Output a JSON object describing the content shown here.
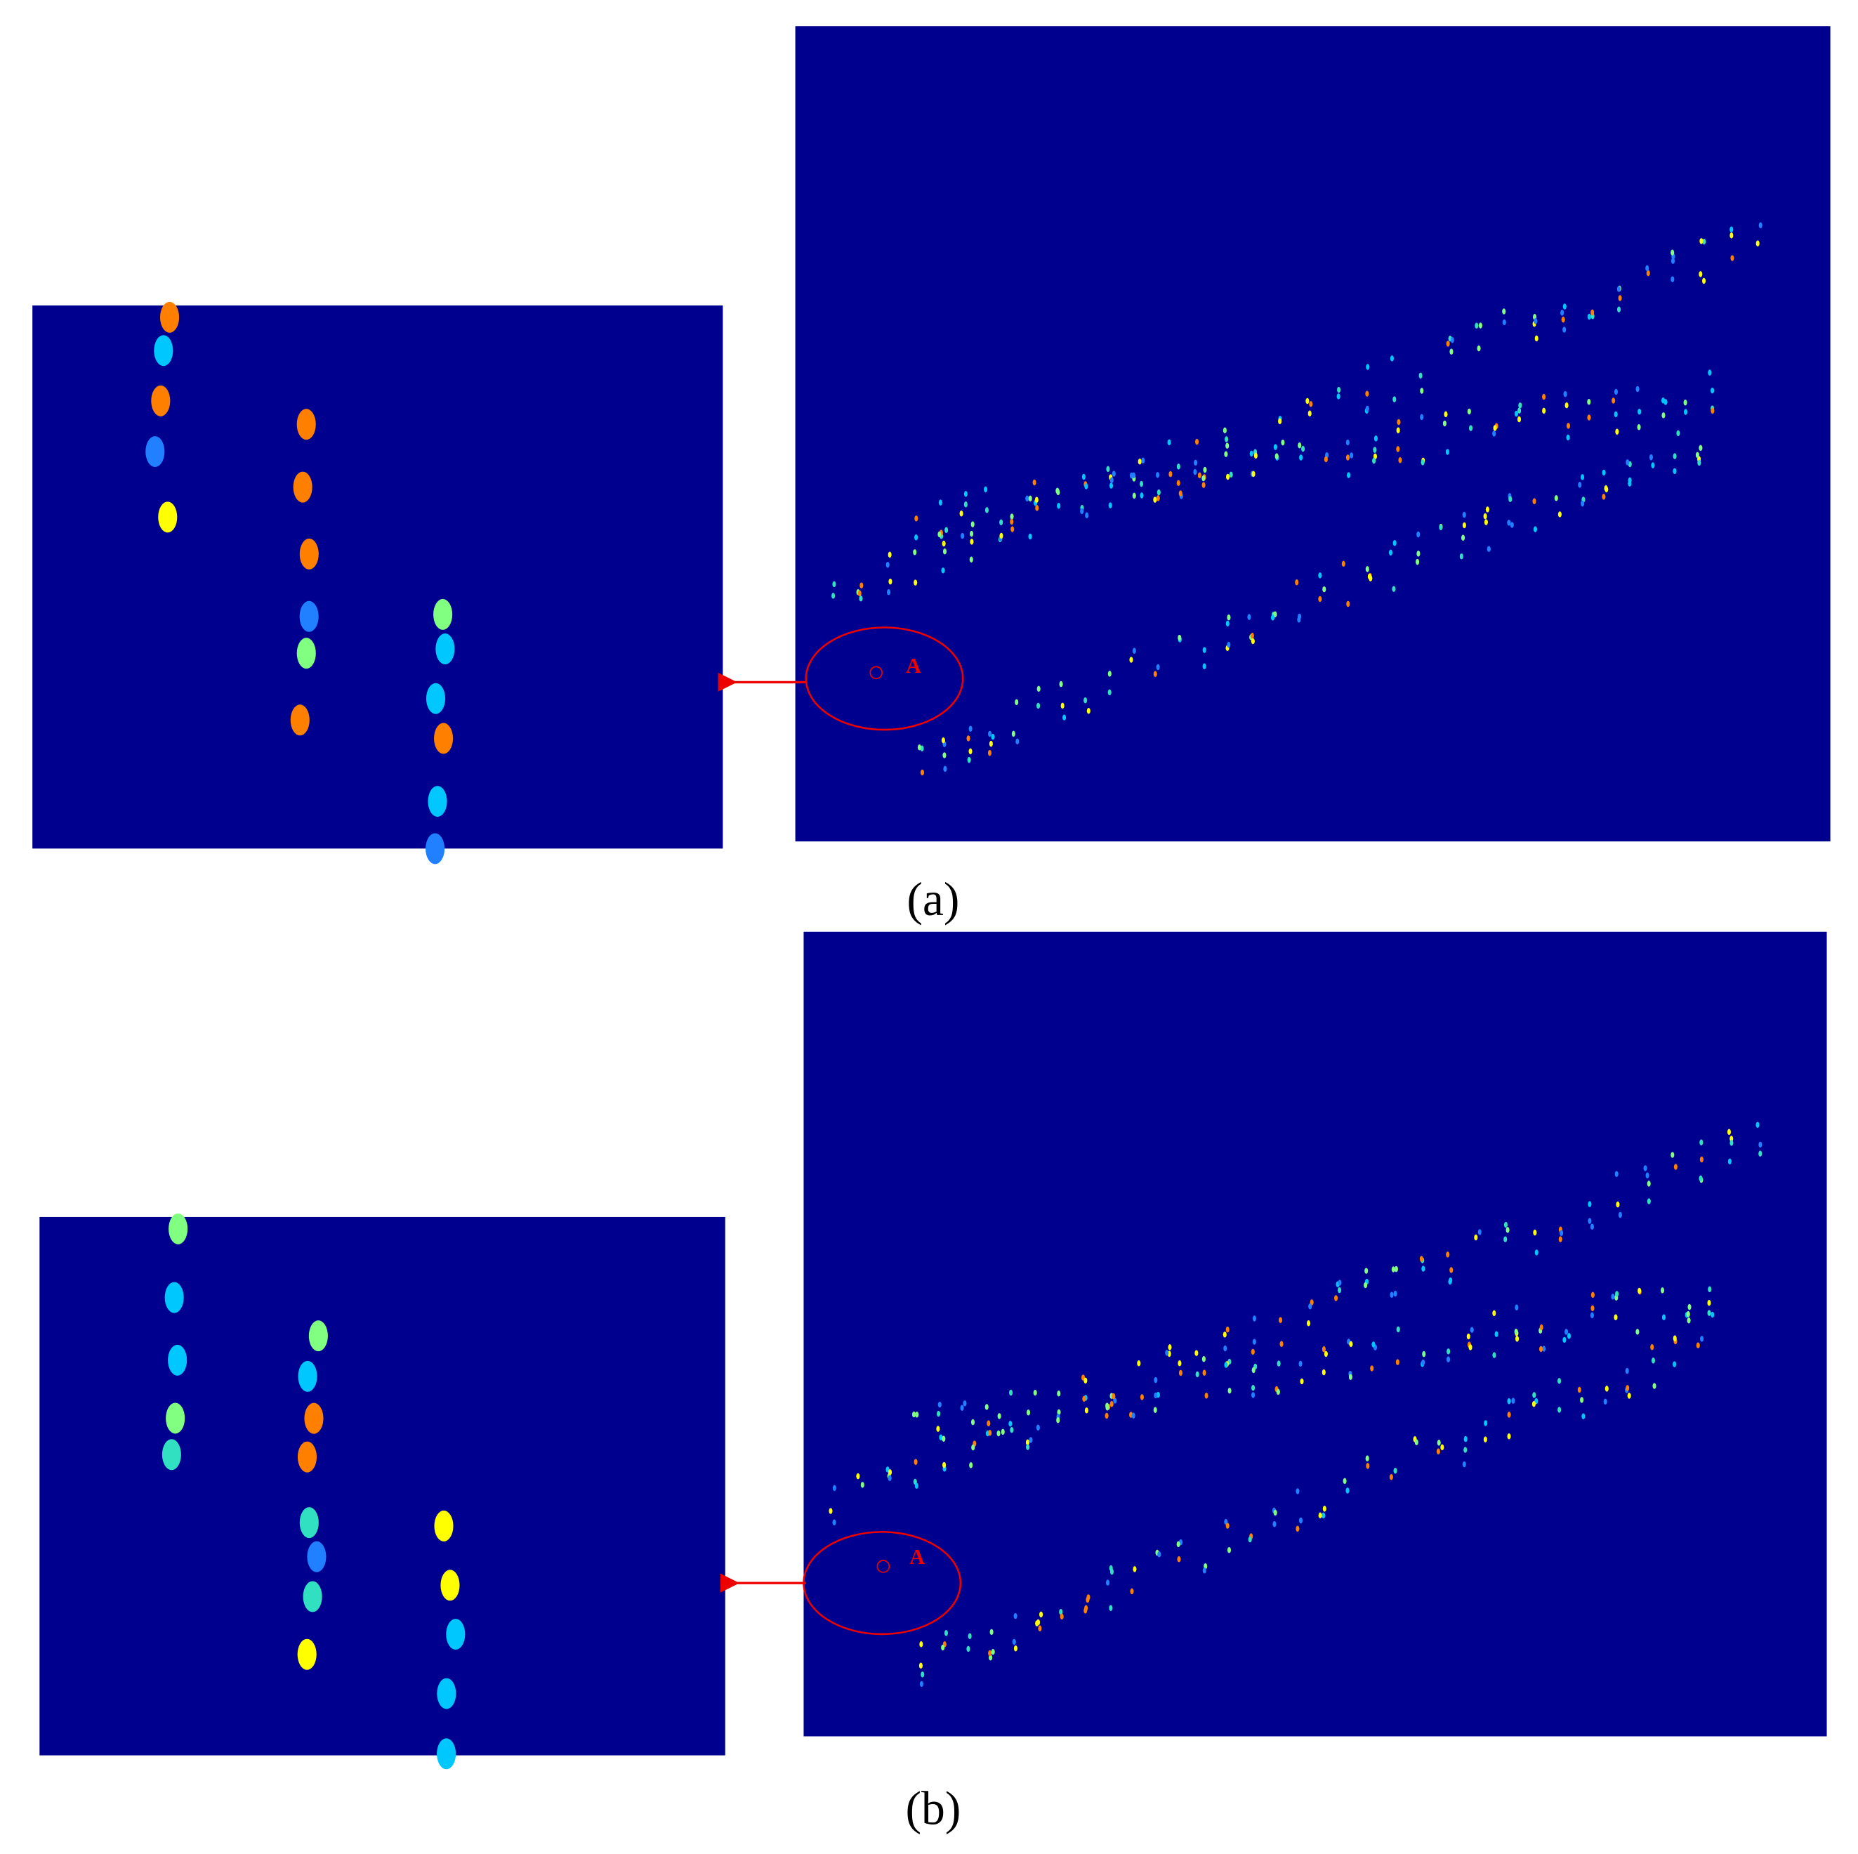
{
  "panels": [
    {
      "label": "(a)",
      "marker": "A"
    },
    {
      "label": "(b)",
      "marker": "A"
    }
  ]
}
